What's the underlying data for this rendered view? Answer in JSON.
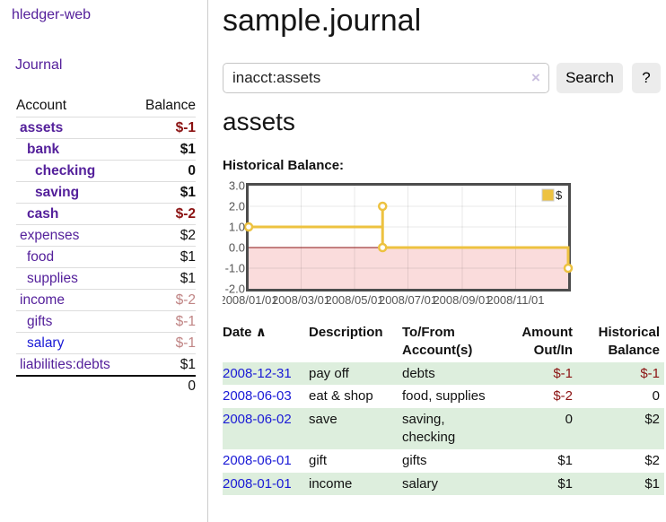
{
  "app": {
    "title": "hledger-web"
  },
  "nav": {
    "journal_label": "Journal"
  },
  "sidebar": {
    "header": {
      "account": "Account",
      "balance": "Balance"
    },
    "accounts": [
      {
        "name": "assets",
        "depth": 1,
        "bold": true,
        "link_color": "purple",
        "balance": "$-1",
        "balance_class": "neg"
      },
      {
        "name": "bank",
        "depth": 2,
        "bold": true,
        "link_color": "purple",
        "balance": "$1",
        "balance_class": ""
      },
      {
        "name": "checking",
        "depth": 3,
        "bold": true,
        "link_color": "purple",
        "balance": "0",
        "balance_class": ""
      },
      {
        "name": "saving",
        "depth": 3,
        "bold": true,
        "link_color": "purple",
        "balance": "$1",
        "balance_class": ""
      },
      {
        "name": "cash",
        "depth": 2,
        "bold": true,
        "link_color": "purple",
        "balance": "$-2",
        "balance_class": "neg"
      },
      {
        "name": "expenses",
        "depth": 1,
        "bold": false,
        "link_color": "purple",
        "balance": "$2",
        "balance_class": ""
      },
      {
        "name": "food",
        "depth": 2,
        "bold": false,
        "link_color": "purple",
        "balance": "$1",
        "balance_class": ""
      },
      {
        "name": "supplies",
        "depth": 2,
        "bold": false,
        "link_color": "purple",
        "balance": "$1",
        "balance_class": ""
      },
      {
        "name": "income",
        "depth": 1,
        "bold": false,
        "link_color": "purple",
        "balance": "$-2",
        "balance_class": "neg-soft"
      },
      {
        "name": "gifts",
        "depth": 2,
        "bold": false,
        "link_color": "purple",
        "balance": "$-1",
        "balance_class": "neg-soft"
      },
      {
        "name": "salary",
        "depth": 2,
        "bold": false,
        "link_color": "blue",
        "balance": "$-1",
        "balance_class": "neg-soft"
      },
      {
        "name": "liabilities:debts",
        "depth": 1,
        "bold": false,
        "link_color": "purple",
        "balance": "$1",
        "balance_class": ""
      }
    ],
    "total": "0"
  },
  "main": {
    "title": "sample.journal",
    "search": {
      "value": "inacct:assets",
      "clear_icon": "×",
      "button_label": "Search",
      "help_label": "?"
    },
    "account_heading": "assets",
    "chart_label": "Historical Balance:"
  },
  "chart_data": {
    "type": "line",
    "style": "step",
    "title": "Historical Balance",
    "legend": [
      {
        "label": "$",
        "color": "#EDC240"
      }
    ],
    "legend_position": "top-right",
    "grid": true,
    "x_range_days": 365,
    "y_range": [
      -2,
      3
    ],
    "y_ticks": [
      {
        "label": "3.0",
        "value": 3
      },
      {
        "label": "2.0",
        "value": 2
      },
      {
        "label": "1.0",
        "value": 1
      },
      {
        "label": "0.0",
        "value": 0
      },
      {
        "label": "-1.0",
        "value": -1
      },
      {
        "label": "-2.0",
        "value": -2
      }
    ],
    "x_ticks": [
      {
        "label": "2008/01/01",
        "day": 0
      },
      {
        "label": "2008/03/01",
        "day": 60
      },
      {
        "label": "2008/05/01",
        "day": 121
      },
      {
        "label": "2008/07/01",
        "day": 182
      },
      {
        "label": "2008/09/01",
        "day": 244
      },
      {
        "label": "2008/11/01",
        "day": 305
      }
    ],
    "series": [
      {
        "name": "$",
        "color": "#EDC240",
        "points": [
          {
            "date": "2008/01/01",
            "value": 1
          },
          {
            "date": "2008/06/03",
            "value": 2
          },
          {
            "date": "2008/06/03",
            "value": 0
          },
          {
            "date": "2008/12/31",
            "value": -1
          }
        ],
        "polyline_days": [
          [
            0,
            1
          ],
          [
            153,
            1
          ],
          [
            153,
            2
          ],
          [
            153,
            0
          ],
          [
            365,
            0
          ],
          [
            365,
            -1
          ]
        ],
        "marker_days": [
          [
            0,
            1
          ],
          [
            153,
            2
          ],
          [
            153,
            0
          ],
          [
            365,
            -1
          ]
        ]
      }
    ],
    "zero_line_color": "#8b1212",
    "negative_region_color": "#fadcdc",
    "border_color": "#4d4d4d",
    "gridline_color": "rgba(0,0,0,0.09)"
  },
  "register": {
    "headers": [
      "Date",
      "Description",
      "To/From Account(s)",
      "Amount Out/In",
      "Historical Balance"
    ],
    "sort_icon": "∧",
    "rows": [
      {
        "date": "2008-12-31",
        "description": "pay off",
        "accounts": "debts",
        "amount": "$-1",
        "balance": "$-1",
        "green": true
      },
      {
        "date": "2008-06-03",
        "description": "eat & shop",
        "accounts": "food, supplies",
        "amount": "$-2",
        "balance": "0",
        "green": false
      },
      {
        "date": "2008-06-02",
        "description": "save",
        "accounts": "saving, checking",
        "amount": "0",
        "balance": "$2",
        "green": true
      },
      {
        "date": "2008-06-01",
        "description": "gift",
        "accounts": "gifts",
        "amount": "$1",
        "balance": "$2",
        "green": false
      },
      {
        "date": "2008-01-01",
        "description": "income",
        "accounts": "salary",
        "amount": "$1",
        "balance": "$1",
        "green": true
      }
    ]
  },
  "colors": {
    "link_purple": "#54209b",
    "link_blue": "#1a1ad6",
    "negative_strong": "#8b1212",
    "negative_soft": "#c08484",
    "row_green": "#ddeedd",
    "series_gold": "#EDC240",
    "chart_negative_fill": "#fadcdc",
    "zero_line": "#8b1212"
  }
}
